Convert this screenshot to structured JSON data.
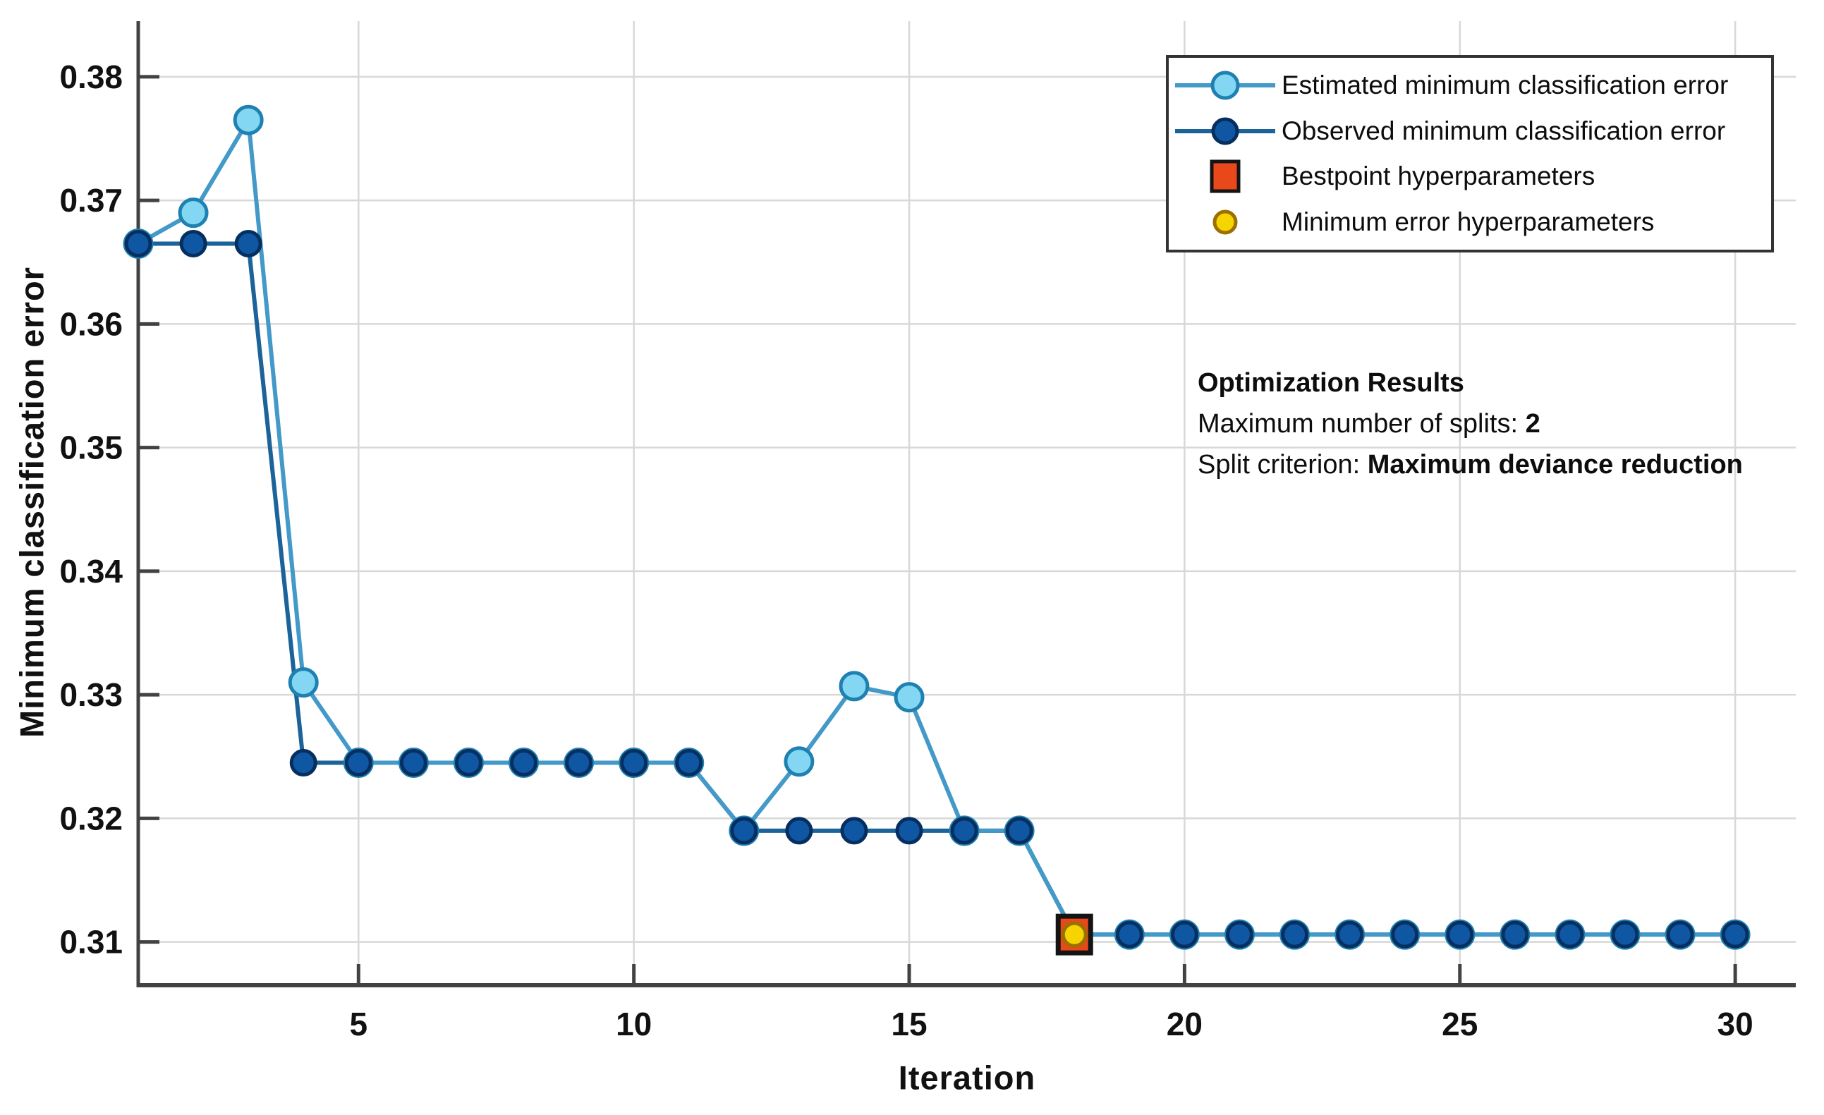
{
  "chart_data": {
    "type": "line",
    "title": "",
    "xlabel": "Iteration",
    "ylabel": "Minimum classification error",
    "xlim": [
      1,
      31.1
    ],
    "ylim": [
      0.3065,
      0.3845
    ],
    "xticks": [
      5,
      10,
      15,
      20,
      25,
      30
    ],
    "ytick_labels": [
      "0.31",
      "0.32",
      "0.33",
      "0.34",
      "0.35",
      "0.36",
      "0.37",
      "0.38"
    ],
    "yticks": [
      0.31,
      0.32,
      0.33,
      0.34,
      0.35,
      0.36,
      0.37,
      0.38
    ],
    "grid": true,
    "legend_position": "top-right",
    "x": [
      1,
      2,
      3,
      4,
      5,
      6,
      7,
      8,
      9,
      10,
      11,
      12,
      13,
      14,
      15,
      16,
      17,
      18,
      19,
      20,
      21,
      22,
      23,
      24,
      25,
      26,
      27,
      28,
      29,
      30
    ],
    "series": [
      {
        "name": "Estimated minimum classification error",
        "values": [
          0.3665,
          0.369,
          0.3765,
          0.331,
          0.3245,
          0.3245,
          0.3245,
          0.3245,
          0.3245,
          0.3245,
          0.3245,
          0.319,
          0.3246,
          0.3307,
          0.3298,
          0.319,
          0.319,
          0.3106,
          0.3106,
          0.3106,
          0.3106,
          0.3106,
          0.3106,
          0.3106,
          0.3106,
          0.3106,
          0.3106,
          0.3106,
          0.3106,
          0.3106
        ]
      },
      {
        "name": "Observed minimum classification error",
        "values": [
          0.3665,
          0.3665,
          0.3665,
          0.3245,
          0.3245,
          0.3245,
          0.3245,
          0.3245,
          0.3245,
          0.3245,
          0.3245,
          0.319,
          0.319,
          0.319,
          0.319,
          0.319,
          0.319,
          0.3106,
          0.3106,
          0.3106,
          0.3106,
          0.3106,
          0.3106,
          0.3106,
          0.3106,
          0.3106,
          0.3106,
          0.3106,
          0.3106,
          0.3106
        ]
      }
    ],
    "special_points": [
      {
        "name": "Bestpoint hyperparameters",
        "marker": "square",
        "x": 18,
        "y": 0.3106
      },
      {
        "name": "Minimum error hyperparameters",
        "marker": "circle",
        "x": 18,
        "y": 0.3106
      }
    ]
  },
  "legend": {
    "entries": [
      {
        "label": "Estimated minimum classification error"
      },
      {
        "label": "Observed minimum classification error"
      },
      {
        "label": "Bestpoint hyperparameters"
      },
      {
        "label": "Minimum error hyperparameters"
      }
    ]
  },
  "annotation": {
    "title": "Optimization Results",
    "lines": [
      {
        "label": "Maximum number of splits: ",
        "value": "2"
      },
      {
        "label": "Split criterion: ",
        "value": "Maximum deviance reduction"
      }
    ]
  },
  "colors": {
    "estimated_line": "#4399C8",
    "estimated_marker_fill": "#84D7F2",
    "estimated_marker_edge": "#1F81B2",
    "observed_line": "#1B6399",
    "observed_marker_fill": "#0F57A3",
    "observed_marker_edge": "#062F60",
    "best_point_fill": "#E8481A",
    "best_point_edge": "#141414",
    "min_error_fill": "#F5D402",
    "min_error_edge": "#9C6F00",
    "grid": "#D8D8D8",
    "axis": "#424242",
    "tick_text": "#111111"
  }
}
